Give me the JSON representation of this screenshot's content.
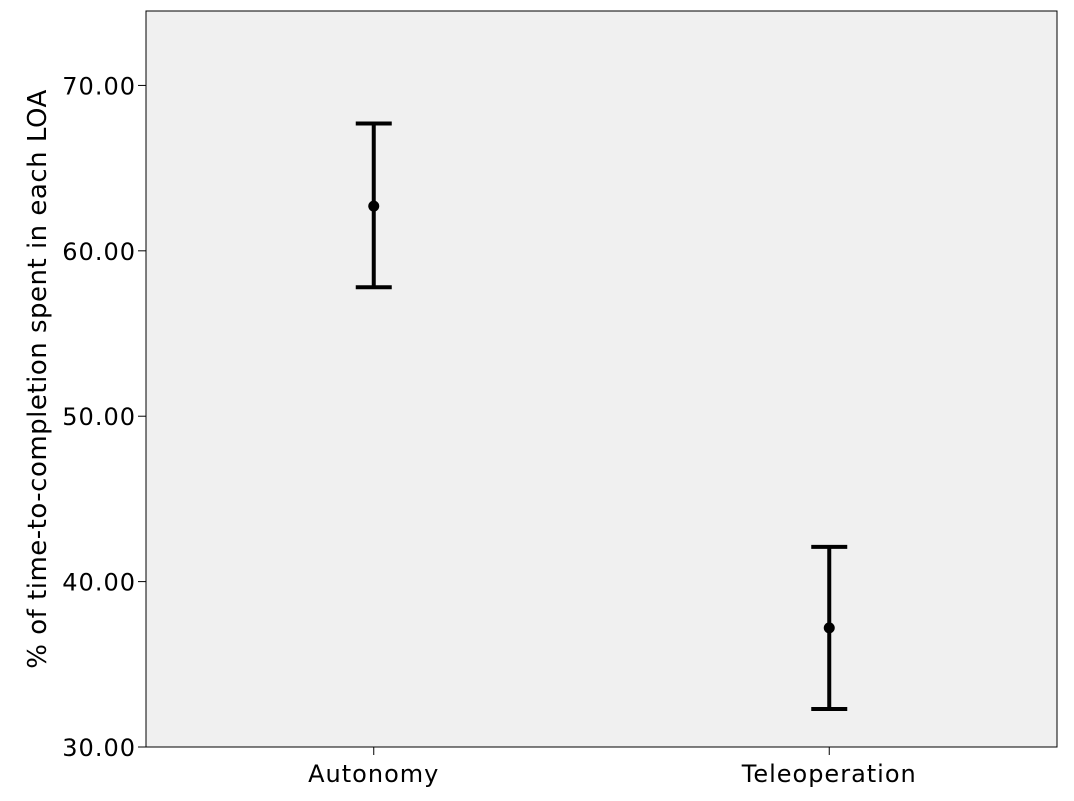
{
  "chart_data": {
    "type": "scatter",
    "title": "",
    "xlabel": "",
    "ylabel": "% of time-to-completion spent in each LOA",
    "categories": [
      "Autonomy",
      "Teleoperation"
    ],
    "series": [
      {
        "points": [
          {
            "category": "Autonomy",
            "mean": 62.7,
            "lower": 57.8,
            "upper": 67.7
          },
          {
            "category": "Teleoperation",
            "mean": 37.2,
            "lower": 32.3,
            "upper": 42.1
          }
        ]
      }
    ],
    "error_bars": true,
    "ylim": [
      30,
      74.5
    ],
    "yticks": [
      30,
      40,
      50,
      60,
      70
    ],
    "ytick_labels": [
      "30.00",
      "40.00",
      "50.00",
      "60.00",
      "70.00"
    ],
    "grid": false,
    "legend": "none",
    "colors": {
      "plot_background": "#f0f0f0",
      "marks": "#000000",
      "frame": "#000000"
    }
  }
}
